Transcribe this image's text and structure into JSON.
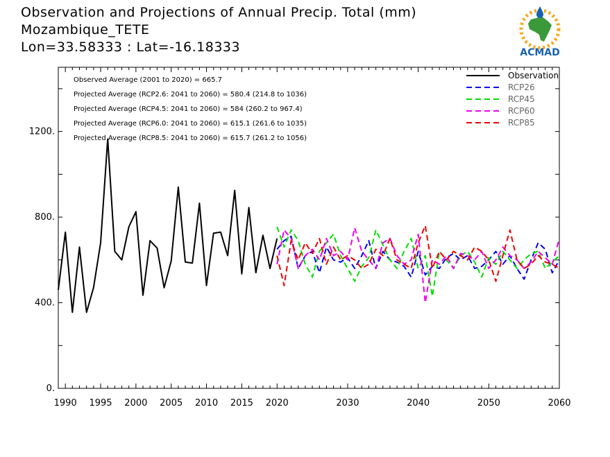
{
  "header": {
    "title_line1": "Observation and Projections of Annual Precip. Total (mm)",
    "title_line2": "Mozambique_TETE",
    "title_line3": "Lon=33.58333 : Lat=-16.18333"
  },
  "logo": {
    "text": "ACMAD",
    "accent": "#1a62b0",
    "green": "#3a9a3a",
    "sun": "#f4a81d"
  },
  "chart_data": {
    "type": "line",
    "xlim": [
      1989,
      2060
    ],
    "ylim": [
      0,
      1500
    ],
    "x_ticks": [
      1990,
      1995,
      2000,
      2005,
      2010,
      2015,
      2020,
      2030,
      2040,
      2050,
      2060
    ],
    "y_ticks": [
      0,
      400,
      800,
      1200
    ],
    "y_tick_labels": [
      "0.",
      "400.",
      "800.",
      "1200."
    ],
    "grid": false,
    "legend_position": "top-right",
    "stats": [
      "Observed Average (2001 to 2020) = 665.7",
      "Projected Average (RCP2.6: 2041 to 2060) = 580.4 (214.8 to 1036)",
      "Projected Average (RCP4.5: 2041 to 2060) = 584 (260.2 to 967.4)",
      "Projected Average (RCP6.0: 2041 to 2060) = 615.1 (261.6 to 1035)",
      "Projected Average (RCP8.5: 2041 to 2060) = 615.7 (261.2 to 1056)"
    ],
    "series": [
      {
        "name": "Observation",
        "color": "#000000",
        "dash": "solid",
        "x": [
          1989,
          1990,
          1991,
          1992,
          1993,
          1994,
          1995,
          1996,
          1997,
          1998,
          1999,
          2000,
          2001,
          2002,
          2003,
          2004,
          2005,
          2006,
          2007,
          2008,
          2009,
          2010,
          2011,
          2012,
          2013,
          2014,
          2015,
          2016,
          2017,
          2018,
          2019,
          2020
        ],
        "y": [
          460,
          730,
          355,
          660,
          355,
          470,
          680,
          1165,
          640,
          600,
          755,
          825,
          435,
          690,
          655,
          470,
          595,
          940,
          590,
          585,
          865,
          480,
          725,
          730,
          620,
          925,
          535,
          845,
          540,
          715,
          560,
          700
        ]
      },
      {
        "name": "RCP26",
        "color": "#0000ee",
        "dash": "dashed",
        "x": [
          2020,
          2021,
          2022,
          2023,
          2024,
          2025,
          2026,
          2027,
          2028,
          2029,
          2030,
          2031,
          2032,
          2033,
          2034,
          2035,
          2036,
          2037,
          2038,
          2039,
          2040,
          2041,
          2042,
          2043,
          2044,
          2045,
          2046,
          2047,
          2048,
          2049,
          2050,
          2051,
          2052,
          2053,
          2054,
          2055,
          2056,
          2057,
          2058,
          2059,
          2060
        ],
        "y": [
          650,
          690,
          710,
          560,
          620,
          640,
          540,
          660,
          600,
          590,
          610,
          560,
          620,
          690,
          560,
          640,
          600,
          590,
          570,
          520,
          640,
          530,
          570,
          560,
          610,
          630,
          600,
          620,
          560,
          570,
          600,
          640,
          580,
          620,
          560,
          510,
          600,
          680,
          650,
          540,
          600
        ]
      },
      {
        "name": "RCP45",
        "color": "#00dd00",
        "dash": "dashed",
        "x": [
          2020,
          2021,
          2022,
          2023,
          2024,
          2025,
          2026,
          2027,
          2028,
          2029,
          2030,
          2031,
          2032,
          2033,
          2034,
          2035,
          2036,
          2037,
          2038,
          2039,
          2040,
          2041,
          2042,
          2043,
          2044,
          2045,
          2046,
          2047,
          2048,
          2049,
          2050,
          2051,
          2052,
          2053,
          2054,
          2055,
          2056,
          2057,
          2058,
          2059,
          2060
        ],
        "y": [
          755,
          660,
          740,
          690,
          580,
          520,
          640,
          680,
          720,
          620,
          560,
          500,
          570,
          610,
          740,
          670,
          600,
          560,
          640,
          700,
          560,
          620,
          430,
          640,
          600,
          560,
          620,
          640,
          590,
          520,
          610,
          580,
          640,
          600,
          560,
          600,
          630,
          640,
          560,
          590,
          620
        ]
      },
      {
        "name": "RCP60",
        "color": "#ee00ee",
        "dash": "dashed",
        "x": [
          2020,
          2021,
          2022,
          2023,
          2024,
          2025,
          2026,
          2027,
          2028,
          2029,
          2030,
          2031,
          2032,
          2033,
          2034,
          2035,
          2036,
          2037,
          2038,
          2039,
          2040,
          2041,
          2042,
          2043,
          2044,
          2045,
          2046,
          2047,
          2048,
          2049,
          2050,
          2051,
          2052,
          2053,
          2054,
          2055,
          2056,
          2057,
          2058,
          2059,
          2060
        ],
        "y": [
          580,
          740,
          700,
          560,
          620,
          650,
          600,
          700,
          620,
          640,
          600,
          750,
          640,
          600,
          560,
          680,
          700,
          620,
          580,
          600,
          720,
          400,
          600,
          580,
          620,
          560,
          630,
          620,
          600,
          640,
          560,
          600,
          660,
          620,
          600,
          560,
          590,
          640,
          610,
          580,
          700
        ]
      },
      {
        "name": "RCP85",
        "color": "#ee0000",
        "dash": "dashed",
        "x": [
          2020,
          2021,
          2022,
          2023,
          2024,
          2025,
          2026,
          2027,
          2028,
          2029,
          2030,
          2031,
          2032,
          2033,
          2034,
          2035,
          2036,
          2037,
          2038,
          2039,
          2040,
          2041,
          2042,
          2043,
          2044,
          2045,
          2046,
          2047,
          2048,
          2049,
          2050,
          2051,
          2052,
          2053,
          2054,
          2055,
          2056,
          2057,
          2058,
          2059,
          2060
        ],
        "y": [
          620,
          480,
          690,
          600,
          680,
          630,
          700,
          580,
          660,
          600,
          620,
          600,
          560,
          580,
          650,
          620,
          700,
          600,
          580,
          560,
          680,
          760,
          560,
          640,
          600,
          640,
          620,
          600,
          660,
          640,
          600,
          500,
          620,
          740,
          600,
          560,
          580,
          620,
          590,
          580,
          560
        ]
      }
    ]
  }
}
